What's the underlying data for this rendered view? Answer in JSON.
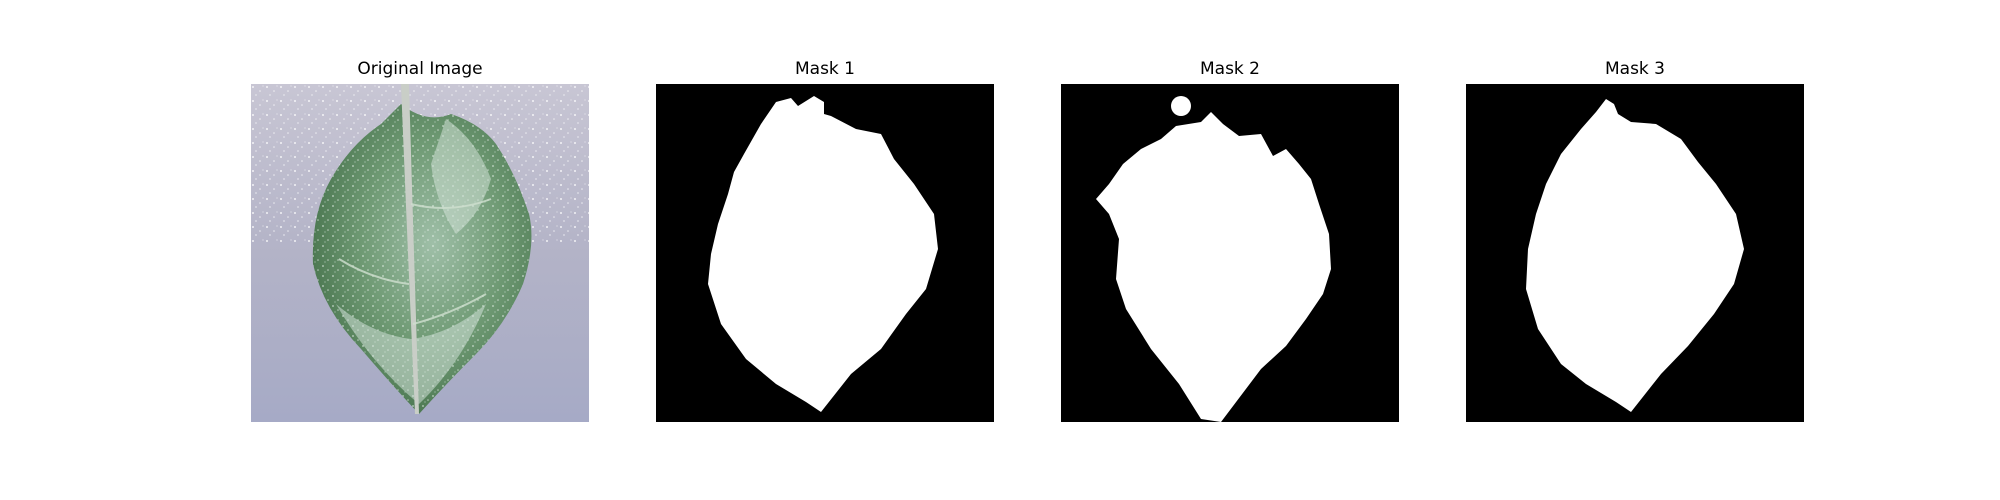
{
  "figure": {
    "panels": [
      {
        "title": "Original Image",
        "content": "leaf-photo"
      },
      {
        "title": "Mask 1",
        "content": "segmentation-mask"
      },
      {
        "title": "Mask 2",
        "content": "segmentation-mask"
      },
      {
        "title": "Mask 3",
        "content": "segmentation-mask"
      }
    ]
  },
  "colors": {
    "figure_background": "#ffffff",
    "mask_background": "#000000",
    "mask_foreground": "#ffffff",
    "photo_background": "#aeb0c6",
    "leaf_green": "#5e8a62",
    "leaf_highlight": "#cde2d8"
  }
}
